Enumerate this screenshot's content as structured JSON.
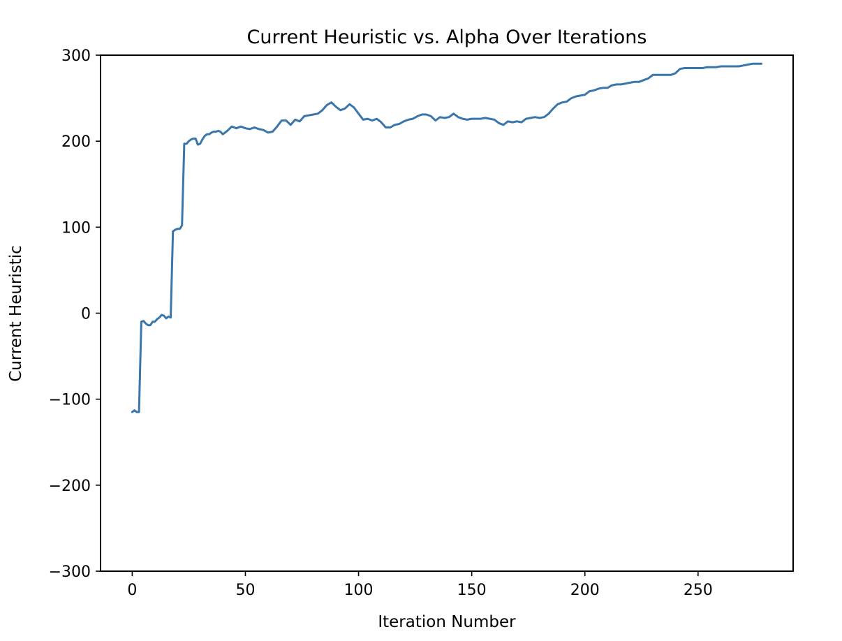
{
  "chart_data": {
    "type": "line",
    "title": "Current Heuristic vs. Alpha Over Iterations",
    "xlabel": "Iteration Number",
    "ylabel": "Current Heuristic",
    "xlim": [
      -14,
      292
    ],
    "ylim": [
      -300,
      300
    ],
    "xticks": [
      0,
      50,
      100,
      150,
      200,
      250
    ],
    "yticks": [
      -300,
      -200,
      -100,
      0,
      100,
      200,
      300
    ],
    "xtick_labels": [
      "0",
      "50",
      "100",
      "150",
      "200",
      "250"
    ],
    "ytick_labels": [
      "−300",
      "−200",
      "−100",
      "0",
      "100",
      "200",
      "300"
    ],
    "grid": false,
    "series": [
      {
        "color": "#3a75ab",
        "x": [
          0,
          1,
          2,
          3,
          4,
          5,
          6,
          7,
          8,
          9,
          10,
          11,
          12,
          13,
          14,
          15,
          16,
          17,
          18,
          19,
          20,
          21,
          22,
          23,
          24,
          25,
          26,
          27,
          28,
          29,
          30,
          31,
          32,
          33,
          34,
          35,
          36,
          37,
          38,
          39,
          40,
          42,
          44,
          46,
          48,
          50,
          52,
          54,
          56,
          58,
          60,
          62,
          64,
          66,
          68,
          70,
          72,
          74,
          76,
          78,
          80,
          82,
          84,
          86,
          88,
          90,
          92,
          94,
          96,
          98,
          100,
          102,
          104,
          106,
          108,
          110,
          112,
          114,
          116,
          118,
          120,
          122,
          124,
          126,
          128,
          130,
          132,
          134,
          136,
          138,
          140,
          142,
          144,
          146,
          148,
          150,
          152,
          154,
          156,
          158,
          160,
          162,
          164,
          166,
          168,
          170,
          172,
          174,
          176,
          178,
          180,
          182,
          184,
          186,
          188,
          190,
          192,
          194,
          196,
          198,
          200,
          202,
          204,
          206,
          208,
          210,
          212,
          214,
          216,
          218,
          220,
          222,
          224,
          226,
          228,
          230,
          232,
          234,
          236,
          238,
          240,
          242,
          244,
          246,
          248,
          250,
          252,
          254,
          256,
          258,
          260,
          262,
          264,
          266,
          268,
          270,
          272,
          274,
          276,
          278
        ],
        "y": [
          -115,
          -113,
          -115,
          -115,
          -10,
          -9,
          -12,
          -14,
          -14,
          -10,
          -10,
          -7,
          -5,
          -2,
          -3,
          -6,
          -4,
          -5,
          95,
          97,
          98,
          98,
          102,
          197,
          197,
          200,
          202,
          203,
          203,
          196,
          197,
          202,
          206,
          208,
          208,
          210,
          211,
          211,
          212,
          211,
          208,
          212,
          217,
          215,
          217,
          215,
          214,
          216,
          214,
          213,
          210,
          211,
          217,
          224,
          224,
          219,
          225,
          223,
          229,
          230,
          231,
          232,
          236,
          242,
          245,
          240,
          236,
          238,
          243,
          239,
          232,
          225,
          226,
          224,
          226,
          222,
          216,
          216,
          219,
          220,
          223,
          225,
          226,
          229,
          231,
          231,
          229,
          224,
          228,
          227,
          228,
          232,
          228,
          226,
          225,
          226,
          226,
          226,
          227,
          226,
          225,
          221,
          219,
          223,
          222,
          223,
          222,
          226,
          227,
          228,
          227,
          228,
          232,
          238,
          243,
          245,
          246,
          250,
          252,
          253,
          254,
          258,
          259,
          261,
          262,
          262,
          265,
          266,
          266,
          267,
          268,
          269,
          269,
          271,
          273,
          277,
          277,
          277,
          277,
          277,
          279,
          284,
          285,
          285,
          285,
          285,
          285,
          286,
          286,
          286,
          287,
          287,
          287,
          287,
          287,
          288,
          289,
          290,
          290,
          290
        ]
      }
    ]
  }
}
